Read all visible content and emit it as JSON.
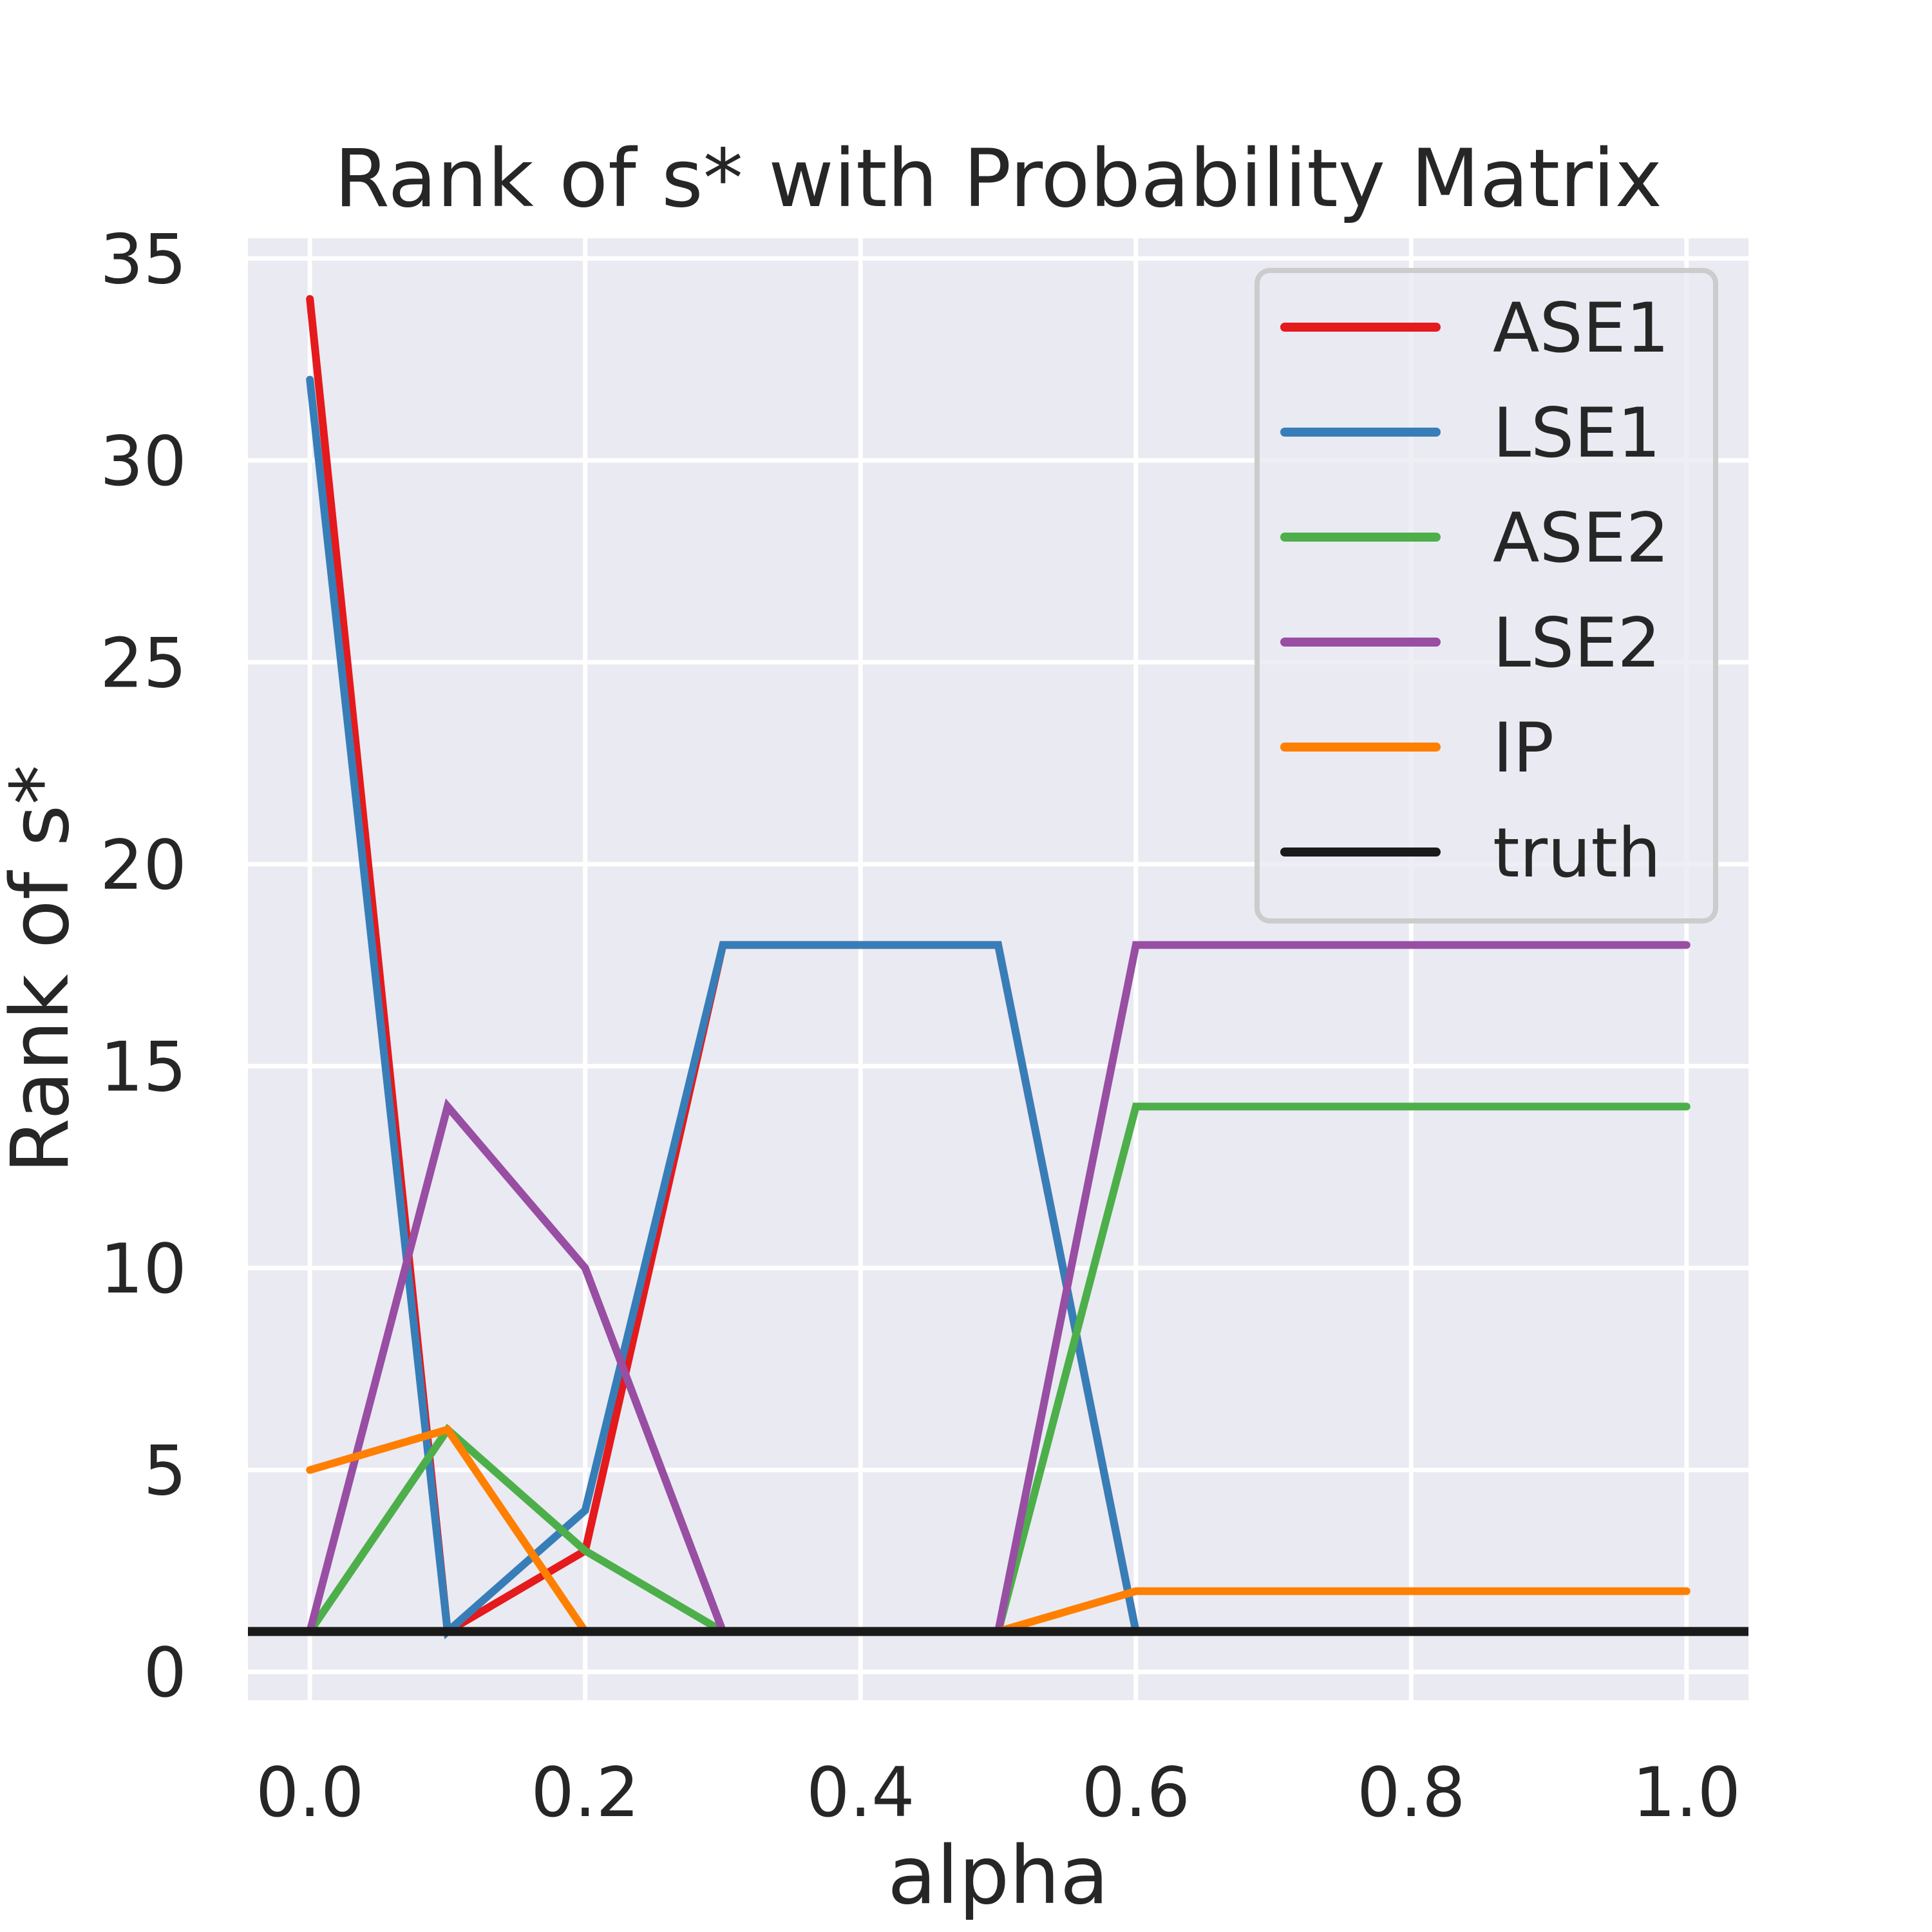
{
  "chart_data": {
    "type": "line",
    "title": "Rank of s* with Probability Matrix",
    "xlabel": "alpha",
    "ylabel": "Rank of s*",
    "xlim": [
      -0.045,
      1.045
    ],
    "ylim": [
      -0.7,
      35.5
    ],
    "xticks": [
      "0.0",
      "0.2",
      "0.4",
      "0.6",
      "0.8",
      "1.0"
    ],
    "yticks": [
      "0",
      "5",
      "10",
      "15",
      "20",
      "25",
      "30",
      "35"
    ],
    "grid": true,
    "legend_position": "top-right",
    "x": [
      0.0,
      0.1,
      0.2,
      0.3,
      0.4,
      0.5,
      0.6,
      0.7,
      0.8,
      0.9,
      1.0
    ],
    "series": [
      {
        "name": "ASE1",
        "color": "#e41a1c",
        "values": [
          34,
          1,
          3,
          18,
          18,
          18,
          1,
          1,
          1,
          1,
          1
        ]
      },
      {
        "name": "LSE1",
        "color": "#377eb8",
        "values": [
          32,
          1,
          4,
          18,
          18,
          18,
          1,
          1,
          1,
          1,
          1
        ]
      },
      {
        "name": "ASE2",
        "color": "#4daf4a",
        "values": [
          1,
          6,
          3,
          1,
          1,
          1,
          14,
          14,
          14,
          14,
          14
        ]
      },
      {
        "name": "LSE2",
        "color": "#984ea3",
        "values": [
          1,
          14,
          10,
          1,
          1,
          1,
          18,
          18,
          18,
          18,
          18
        ]
      },
      {
        "name": "IP",
        "color": "#ff7f00",
        "values": [
          5,
          6,
          1,
          1,
          1,
          1,
          2,
          2,
          2,
          2,
          2
        ]
      },
      {
        "name": "truth",
        "color": "#1a1a1a",
        "values": [
          1,
          1,
          1,
          1,
          1,
          1,
          1,
          1,
          1,
          1,
          1
        ],
        "span": "full"
      }
    ]
  }
}
